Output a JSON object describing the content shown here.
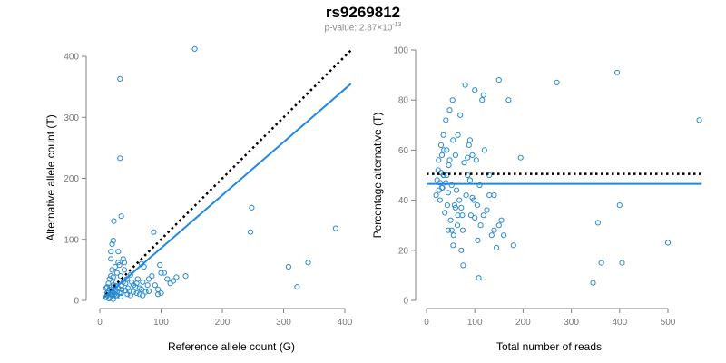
{
  "header": {
    "title": "rs9269812",
    "subtitle_prefix": "p-value: 2.87×10",
    "subtitle_exponent": "-13"
  },
  "colors": {
    "accent": "#1f88e5",
    "point": "#2b8bd0",
    "reference_line": "#000000",
    "axis": "#808080"
  },
  "chart_data": [
    {
      "type": "scatter",
      "title": "",
      "xlabel": "Reference allele count (G)",
      "ylabel": "Alternative allele count (T)",
      "xlim": [
        0,
        410
      ],
      "ylim": [
        0,
        415
      ],
      "xticks": [
        0,
        100,
        200,
        300,
        400
      ],
      "yticks": [
        0,
        100,
        200,
        300,
        400
      ],
      "grid": false,
      "series": [
        {
          "points": [
            [
              10,
              5
            ],
            [
              12,
              8
            ],
            [
              14,
              12
            ],
            [
              15,
              3
            ],
            [
              16,
              18
            ],
            [
              18,
              10
            ],
            [
              18,
              22
            ],
            [
              20,
              15
            ],
            [
              21,
              6
            ],
            [
              22,
              25
            ],
            [
              23,
              12
            ],
            [
              25,
              18
            ],
            [
              26,
              8
            ],
            [
              27,
              30
            ],
            [
              28,
              14
            ],
            [
              30,
              20
            ],
            [
              12,
              22
            ],
            [
              14,
              28
            ],
            [
              16,
              35
            ],
            [
              18,
              40
            ],
            [
              20,
              50
            ],
            [
              22,
              38
            ],
            [
              25,
              55
            ],
            [
              28,
              45
            ],
            [
              30,
              62
            ],
            [
              32,
              58
            ],
            [
              34,
              40
            ],
            [
              35,
              24
            ],
            [
              36,
              18
            ],
            [
              38,
              30
            ],
            [
              40,
              50
            ],
            [
              42,
              28
            ],
            [
              44,
              35
            ],
            [
              46,
              20
            ],
            [
              48,
              15
            ],
            [
              50,
              42
            ],
            [
              52,
              30
            ],
            [
              55,
              25
            ],
            [
              58,
              22
            ],
            [
              60,
              28
            ],
            [
              62,
              35
            ],
            [
              65,
              20
            ],
            [
              68,
              18
            ],
            [
              70,
              30
            ],
            [
              75,
              14
            ],
            [
              78,
              25
            ],
            [
              80,
              35
            ],
            [
              85,
              40
            ],
            [
              90,
              25
            ],
            [
              95,
              18
            ],
            [
              100,
              12
            ],
            [
              105,
              45
            ],
            [
              110,
              35
            ],
            [
              115,
              28
            ],
            [
              120,
              32
            ],
            [
              125,
              38
            ],
            [
              140,
              40
            ],
            [
              18,
              68
            ],
            [
              18,
              80
            ],
            [
              20,
              92
            ],
            [
              22,
              98
            ],
            [
              30,
              80
            ],
            [
              38,
              68
            ],
            [
              23,
              130
            ],
            [
              35,
              138
            ],
            [
              88,
              112
            ],
            [
              98,
              58
            ],
            [
              100,
              45
            ],
            [
              68,
              60
            ],
            [
              72,
              55
            ],
            [
              40,
              62
            ],
            [
              32,
              12
            ],
            [
              28,
              8
            ],
            [
              24,
              10
            ],
            [
              20,
              8
            ],
            [
              35,
              12
            ],
            [
              45,
              10
            ],
            [
              55,
              14
            ],
            [
              65,
              10
            ],
            [
              12,
              12
            ],
            [
              14,
              16
            ],
            [
              10,
              20
            ],
            [
              16,
              5
            ],
            [
              22,
              2
            ],
            [
              26,
              24
            ],
            [
              34,
              6
            ],
            [
              42,
              16
            ],
            [
              50,
              8
            ],
            [
              60,
              12
            ],
            [
              70,
              8
            ],
            [
              80,
              15
            ],
            [
              95,
              10
            ],
            [
              33,
              363
            ],
            [
              33,
              233
            ],
            [
              155,
              412
            ],
            [
              248,
              152
            ],
            [
              246,
              112
            ],
            [
              308,
              55
            ],
            [
              322,
              22
            ],
            [
              340,
              62
            ],
            [
              385,
              118
            ]
          ]
        }
      ],
      "reference_line": {
        "x": [
          10,
          410
        ],
        "y": [
          10,
          410
        ],
        "style": "dotted"
      },
      "fit_line": {
        "x": [
          5,
          410
        ],
        "y": [
          3,
          355
        ]
      }
    },
    {
      "type": "scatter",
      "title": "",
      "xlabel": "Total number of reads",
      "ylabel": "Percentage alternative (T)",
      "xlim": [
        0,
        570
      ],
      "ylim": [
        0,
        100
      ],
      "xticks": [
        0,
        100,
        200,
        300,
        400,
        500
      ],
      "yticks": [
        0,
        20,
        40,
        60,
        80,
        100
      ],
      "grid": false,
      "series": [
        {
          "points": [
            [
              20,
              42
            ],
            [
              22,
              48
            ],
            [
              24,
              52
            ],
            [
              25,
              56
            ],
            [
              26,
              44
            ],
            [
              28,
              40
            ],
            [
              30,
              62
            ],
            [
              32,
              58
            ],
            [
              33,
              45
            ],
            [
              35,
              66
            ],
            [
              36,
              50
            ],
            [
              38,
              35
            ],
            [
              40,
              72
            ],
            [
              42,
              60
            ],
            [
              43,
              38
            ],
            [
              45,
              28
            ],
            [
              46,
              54
            ],
            [
              48,
              76
            ],
            [
              50,
              32
            ],
            [
              52,
              46
            ],
            [
              54,
              80
            ],
            [
              55,
              22
            ],
            [
              56,
              26
            ],
            [
              58,
              38
            ],
            [
              60,
              58
            ],
            [
              62,
              44
            ],
            [
              64,
              30
            ],
            [
              65,
              66
            ],
            [
              68,
              40
            ],
            [
              70,
              74
            ],
            [
              72,
              20
            ],
            [
              74,
              34
            ],
            [
              76,
              14
            ],
            [
              78,
              55
            ],
            [
              80,
              86
            ],
            [
              82,
              42
            ],
            [
              85,
              50
            ],
            [
              88,
              62
            ],
            [
              90,
              48
            ],
            [
              92,
              34
            ],
            [
              95,
              58
            ],
            [
              98,
              40
            ],
            [
              100,
              84
            ],
            [
              103,
              56
            ],
            [
              106,
              24
            ],
            [
              108,
              9
            ],
            [
              110,
              46
            ],
            [
              112,
              30
            ],
            [
              115,
              80
            ],
            [
              118,
              82
            ],
            [
              120,
              60
            ],
            [
              125,
              36
            ],
            [
              130,
              50
            ],
            [
              135,
              26
            ],
            [
              140,
              42
            ],
            [
              145,
              21
            ],
            [
              150,
              88
            ],
            [
              155,
              32
            ],
            [
              160,
              26
            ],
            [
              170,
              80
            ],
            [
              180,
              22
            ],
            [
              195,
              57
            ],
            [
              270,
              87
            ],
            [
              345,
              7
            ],
            [
              355,
              31
            ],
            [
              362,
              15
            ],
            [
              395,
              91
            ],
            [
              400,
              38
            ],
            [
              405,
              15
            ],
            [
              500,
              23
            ],
            [
              565,
              72
            ],
            [
              30,
              51
            ],
            [
              35,
              50
            ],
            [
              40,
              47
            ],
            [
              45,
              43
            ],
            [
              52,
              28
            ],
            [
              60,
              37
            ],
            [
              72,
              37
            ],
            [
              90,
              64
            ],
            [
              100,
              33
            ],
            [
              118,
              34
            ],
            [
              130,
              42
            ],
            [
              150,
              30
            ],
            [
              28,
              47
            ],
            [
              32,
              45
            ],
            [
              36,
              60
            ],
            [
              42,
              50
            ],
            [
              48,
              56
            ],
            [
              55,
              64
            ],
            [
              65,
              34
            ],
            [
              75,
              28
            ],
            [
              85,
              57
            ],
            [
              95,
              41
            ],
            [
              105,
              38
            ],
            [
              140,
              28
            ]
          ]
        }
      ],
      "reference_line": {
        "x": [
          0,
          570
        ],
        "y": [
          50.5,
          50.5
        ],
        "style": "dotted"
      },
      "fit_line": {
        "x": [
          0,
          570
        ],
        "y": [
          46.5,
          46.5
        ]
      }
    }
  ]
}
